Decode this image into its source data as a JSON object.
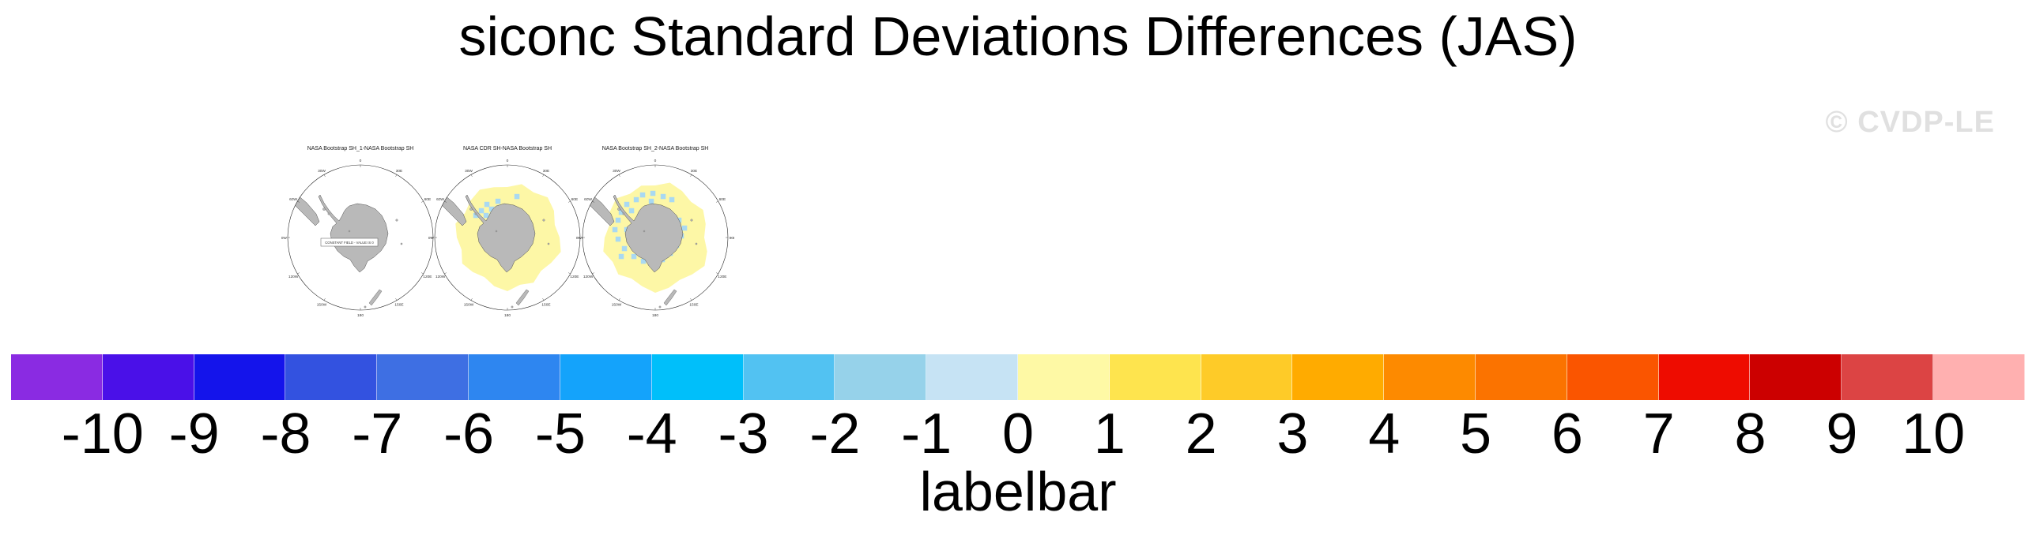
{
  "page_title": "siconc Standard Deviations Differences (JAS)",
  "watermark": "© CVDP-LE",
  "panels": [
    {
      "title": "NASA Bootstrap SH_1-NASA Bootstrap SH",
      "annotation": "CONSTANT FIELD - VALUE IS 0",
      "style": "constant"
    },
    {
      "title": "NASA CDR SH-NASA Bootstrap SH",
      "annotation": "",
      "style": "diff-sparse"
    },
    {
      "title": "NASA Bootstrap SH_2-NASA Bootstrap SH",
      "annotation": "",
      "style": "diff-dense"
    }
  ],
  "map_longitude_labels": [
    "0",
    "30E",
    "60E",
    "90E",
    "120E",
    "150E",
    "180",
    "150W",
    "120W",
    "90W",
    "60W",
    "30W"
  ],
  "labelbar": {
    "caption": "labelbar",
    "tick_labels": [
      "-10",
      "-9",
      "-8",
      "-7",
      "-6",
      "-5",
      "-4",
      "-3",
      "-2",
      "-1",
      "0",
      "1",
      "2",
      "3",
      "4",
      "5",
      "6",
      "7",
      "8",
      "9",
      "10"
    ]
  },
  "colors": {
    "land": "#b9b9b9",
    "land_outline": "#4f4f4f",
    "circle_outline": "#2a2a2a",
    "map_positive_fill": "#fdf7a6",
    "map_negative_fill": "#a9d9f2",
    "watermark": "#e0e0e0",
    "text": "#000000"
  },
  "chart_data": {
    "type": "heatmap",
    "title": "siconc Standard Deviations Differences (JAS)",
    "variable": "siconc",
    "season": "JAS",
    "projection": "south polar stereographic",
    "panels": [
      {
        "title": "NASA Bootstrap SH_1-NASA Bootstrap SH",
        "summary": "CONSTANT FIELD - VALUE IS 0"
      },
      {
        "title": "NASA CDR SH-NASA Bootstrap SH",
        "summary": "ring of 0 to 1 differences (pale yellow) around Antarctica with scattered -1 to 0 cells (light blue), mainly in the Weddell Sea sector"
      },
      {
        "title": "NASA Bootstrap SH_2-NASA Bootstrap SH",
        "summary": "ring of 0 to 1 differences (pale yellow) around Antarctica with many scattered -1 to 0 cells (light blue) in all sectors"
      }
    ],
    "colorbar": {
      "label": "labelbar",
      "tick_values": [
        -10,
        -9,
        -8,
        -7,
        -6,
        -5,
        -4,
        -3,
        -2,
        -1,
        0,
        1,
        2,
        3,
        4,
        5,
        6,
        7,
        8,
        9,
        10
      ],
      "colors": [
        "#8a2be2",
        "#4a10e8",
        "#1414eb",
        "#3352e0",
        "#3e6fe3",
        "#2e86f0",
        "#14a3fb",
        "#00bffa",
        "#52c2f2",
        "#96d2ea",
        "#c6e3f4",
        "#fef9a5",
        "#fee44e",
        "#fecb28",
        "#ffab00",
        "#fd8a00",
        "#fb7300",
        "#fa5500",
        "#ee0c00",
        "#cc0000",
        "#dc4444",
        "#ffb0b0"
      ]
    },
    "legend_position": "bottom",
    "grid": false
  }
}
